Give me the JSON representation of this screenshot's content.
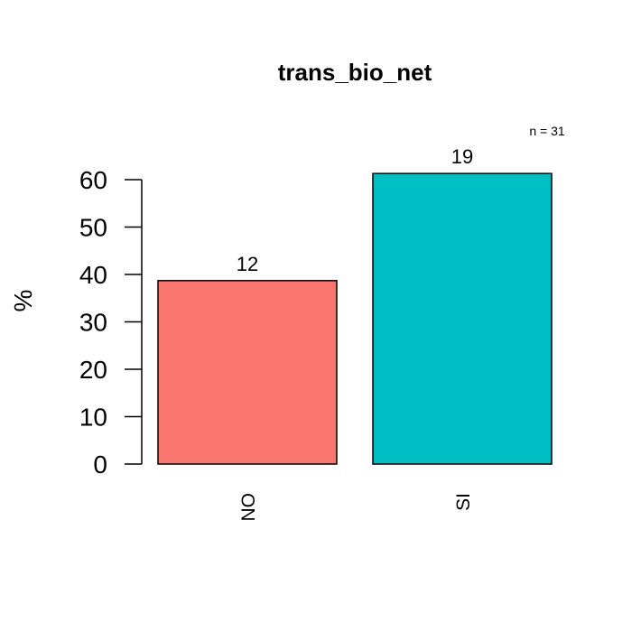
{
  "chart_data": {
    "type": "bar",
    "title": "trans_bio_net",
    "ylabel": "%",
    "xlabel": "",
    "categories": [
      "NO",
      "SI"
    ],
    "values": [
      38.7,
      61.3
    ],
    "counts": [
      "12",
      "19"
    ],
    "colors": [
      "#F8766D",
      "#00BFC4"
    ],
    "ylim": [
      0,
      60
    ],
    "yticks": [
      "0",
      "10",
      "20",
      "30",
      "40",
      "50",
      "60"
    ],
    "annotation": "n = 31",
    "grid": false,
    "legend": "none"
  }
}
